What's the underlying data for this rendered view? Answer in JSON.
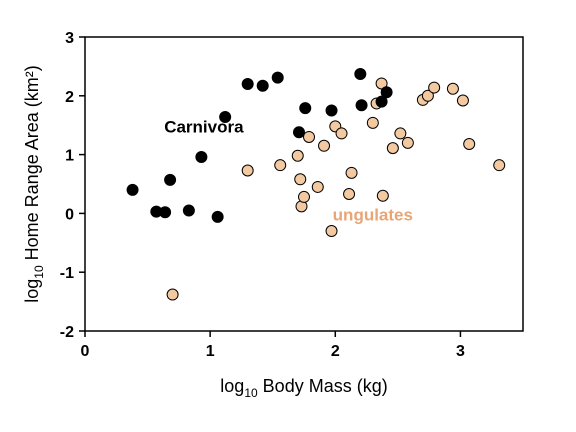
{
  "chart_data": {
    "type": "scatter",
    "title": "",
    "xlabel": {
      "pre": "log",
      "sub": "10",
      "post": " Body Mass (kg)"
    },
    "ylabel": {
      "pre": "log",
      "sub": "10",
      "post": " Home Range Area (km²)"
    },
    "xlim": [
      0,
      3.5
    ],
    "ylim": [
      -2,
      3
    ],
    "xticks": [
      0,
      1,
      2,
      3
    ],
    "yticks": [
      -2,
      -1,
      0,
      1,
      2,
      3
    ],
    "grid": false,
    "legend": "none",
    "series": [
      {
        "label": "Carnivora",
        "color": "#000000",
        "points": [
          [
            0.38,
            0.4
          ],
          [
            0.57,
            0.03
          ],
          [
            0.64,
            0.02
          ],
          [
            0.68,
            0.57
          ],
          [
            0.83,
            0.05
          ],
          [
            0.93,
            0.96
          ],
          [
            1.06,
            -0.06
          ],
          [
            1.12,
            1.64
          ],
          [
            1.3,
            2.2
          ],
          [
            1.42,
            2.17
          ],
          [
            1.54,
            2.31
          ],
          [
            1.71,
            1.38
          ],
          [
            1.76,
            1.79
          ],
          [
            1.97,
            1.75
          ],
          [
            2.2,
            2.37
          ],
          [
            2.21,
            1.84
          ],
          [
            2.37,
            1.9
          ],
          [
            2.41,
            2.06
          ]
        ]
      },
      {
        "label": "ungulates",
        "color": "#f2c9a0",
        "points": [
          [
            0.7,
            -1.38
          ],
          [
            1.3,
            0.73
          ],
          [
            1.56,
            0.82
          ],
          [
            1.7,
            0.98
          ],
          [
            1.72,
            0.58
          ],
          [
            1.73,
            0.12
          ],
          [
            1.75,
            0.28
          ],
          [
            1.79,
            1.3
          ],
          [
            1.86,
            0.45
          ],
          [
            1.91,
            1.15
          ],
          [
            1.97,
            -0.3
          ],
          [
            2.0,
            1.48
          ],
          [
            2.05,
            1.36
          ],
          [
            2.11,
            0.33
          ],
          [
            2.13,
            0.69
          ],
          [
            2.3,
            1.54
          ],
          [
            2.33,
            1.87
          ],
          [
            2.37,
            2.21
          ],
          [
            2.38,
            0.3
          ],
          [
            2.46,
            1.11
          ],
          [
            2.52,
            1.36
          ],
          [
            2.58,
            1.2
          ],
          [
            2.7,
            1.93
          ],
          [
            2.74,
            2.0
          ],
          [
            2.79,
            2.14
          ],
          [
            2.94,
            2.12
          ],
          [
            3.02,
            1.92
          ],
          [
            3.07,
            1.18
          ],
          [
            3.31,
            0.82
          ]
        ]
      }
    ],
    "annotations": [
      {
        "text": "Carnivora",
        "color": "#000000",
        "x": 0.95,
        "y": 1.38
      },
      {
        "text": "ungulates",
        "color": "#e8a676",
        "x": 2.3,
        "y": -0.12
      }
    ]
  }
}
